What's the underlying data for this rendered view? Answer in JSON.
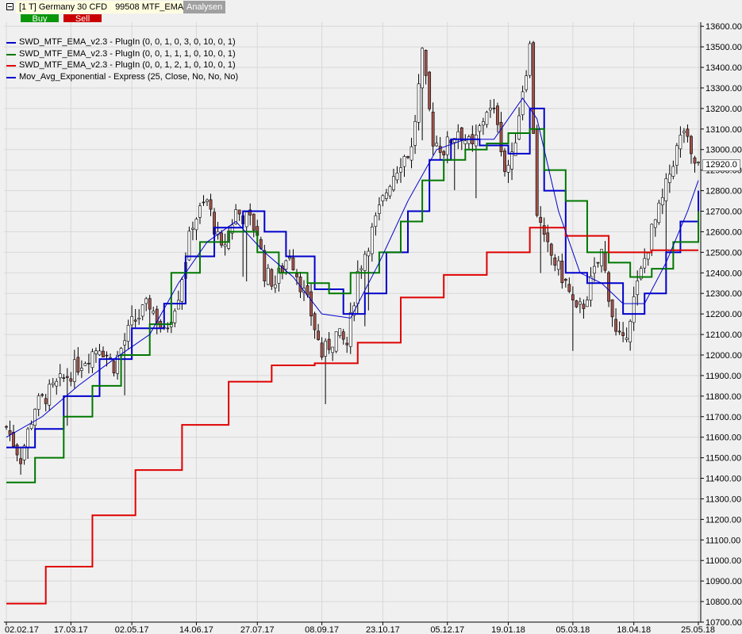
{
  "window": {
    "instrument": "[1 T] Germany 30 CFD",
    "template": "99508 MTF_EMA",
    "analysen_label": "Analysen",
    "buy_label": "Buy",
    "sell_label": "Sell",
    "buy_color": "#0a960a",
    "sell_color": "#c80000"
  },
  "legend": [
    {
      "text": "SWD_MTF_EMA_v2.3 - PlugIn  (0, 0, 1, 0, 3, 0, 10, 0, 1)",
      "color": "#0000cc"
    },
    {
      "text": "SWD_MTF_EMA_v2.3 - PlugIn  (0, 0, 1, 1, 1, 0, 10, 0, 1)",
      "color": "#007800"
    },
    {
      "text": "SWD_MTF_EMA_v2.3 - PlugIn  (0, 0, 1, 2, 1, 0, 10, 0, 1)",
      "color": "#e00000"
    },
    {
      "text": "Mov_Avg_Exponential - Express  (25, Close, No, No, No)",
      "color": "#0000cc"
    }
  ],
  "last_price_label": "12920.0",
  "chart_data": {
    "type": "candlestick",
    "x_tick_labels": [
      "02.02.17",
      "17.03.17",
      "02.05.17",
      "14.06.17",
      "27.07.17",
      "08.09.17",
      "23.10.17",
      "05.12.17",
      "19.01.18",
      "05.03.18",
      "18.04.18",
      "25.05.18"
    ],
    "y_ticks": [
      10700,
      10800,
      10900,
      11000,
      11100,
      11200,
      11300,
      11400,
      11500,
      11600,
      11700,
      11800,
      11900,
      12000,
      12100,
      12200,
      12300,
      12400,
      12500,
      12600,
      12700,
      12800,
      12900,
      13000,
      13100,
      13200,
      13300,
      13400,
      13500,
      13600
    ],
    "ylim": [
      10700,
      13620
    ],
    "grid": true,
    "colors": {
      "up": "#ffffff",
      "down": "#a0524a",
      "wick": "#000000"
    },
    "close_anchors": [
      [
        0,
        11650
      ],
      [
        4,
        11500
      ],
      [
        8,
        11750
      ],
      [
        14,
        11850
      ],
      [
        20,
        11950
      ],
      [
        26,
        12050
      ],
      [
        30,
        11950
      ],
      [
        35,
        12150
      ],
      [
        40,
        12250
      ],
      [
        44,
        12100
      ],
      [
        48,
        12300
      ],
      [
        52,
        12650
      ],
      [
        56,
        12750
      ],
      [
        60,
        12500
      ],
      [
        64,
        12700
      ],
      [
        68,
        12650
      ],
      [
        70,
        12600
      ],
      [
        72,
        12400
      ],
      [
        75,
        12350
      ],
      [
        79,
        12500
      ],
      [
        82,
        12350
      ],
      [
        85,
        12200
      ],
      [
        88,
        12000
      ],
      [
        92,
        12100
      ],
      [
        95,
        12050
      ],
      [
        98,
        12400
      ],
      [
        101,
        12550
      ],
      [
        104,
        12700
      ],
      [
        107,
        12850
      ],
      [
        110,
        12950
      ],
      [
        113,
        13000
      ],
      [
        116,
        13450
      ],
      [
        119,
        13050
      ],
      [
        122,
        13000
      ],
      [
        126,
        13100
      ],
      [
        130,
        13000
      ],
      [
        134,
        13200
      ],
      [
        137,
        13150
      ],
      [
        139,
        12900
      ],
      [
        141,
        12950
      ],
      [
        144,
        13300
      ],
      [
        146,
        13500
      ],
      [
        148,
        12700
      ],
      [
        150,
        12550
      ],
      [
        153,
        12450
      ],
      [
        156,
        12350
      ],
      [
        159,
        12200
      ],
      [
        161,
        12250
      ],
      [
        164,
        12400
      ],
      [
        166,
        12500
      ],
      [
        168,
        12300
      ],
      [
        170,
        12100
      ],
      [
        172,
        12050
      ],
      [
        174,
        12200
      ],
      [
        177,
        12400
      ],
      [
        180,
        12600
      ],
      [
        183,
        12750
      ],
      [
        186,
        12950
      ],
      [
        189,
        13100
      ],
      [
        191,
        12950
      ],
      [
        193,
        12920
      ]
    ],
    "series": [
      {
        "name": "SWD_MTF_EMA_v2.3 - PlugIn  (0, 0, 1, 0, 3, 0, 10, 0, 1)",
        "color": "#0000cc",
        "step": true,
        "points": [
          [
            0,
            11550
          ],
          [
            8,
            11640
          ],
          [
            16,
            11800
          ],
          [
            26,
            11980
          ],
          [
            35,
            12130
          ],
          [
            44,
            12250
          ],
          [
            50,
            12480
          ],
          [
            58,
            12620
          ],
          [
            66,
            12700
          ],
          [
            72,
            12600
          ],
          [
            78,
            12480
          ],
          [
            86,
            12320
          ],
          [
            94,
            12200
          ],
          [
            100,
            12300
          ],
          [
            106,
            12500
          ],
          [
            112,
            12700
          ],
          [
            118,
            12950
          ],
          [
            124,
            13050
          ],
          [
            132,
            13020
          ],
          [
            140,
            12980
          ],
          [
            146,
            13200
          ],
          [
            150,
            12800
          ],
          [
            156,
            12400
          ],
          [
            162,
            12350
          ],
          [
            168,
            12350
          ],
          [
            172,
            12200
          ],
          [
            178,
            12300
          ],
          [
            184,
            12500
          ],
          [
            188,
            12650
          ],
          [
            193,
            12800
          ]
        ]
      },
      {
        "name": "SWD_MTF_EMA_v2.3 - PlugIn  (0, 0, 1, 1, 1, 0, 10, 0, 1)",
        "color": "#007800",
        "step": true,
        "points": [
          [
            0,
            11380
          ],
          [
            8,
            11500
          ],
          [
            16,
            11700
          ],
          [
            24,
            11850
          ],
          [
            32,
            12000
          ],
          [
            40,
            12150
          ],
          [
            46,
            12400
          ],
          [
            54,
            12550
          ],
          [
            62,
            12600
          ],
          [
            70,
            12500
          ],
          [
            76,
            12400
          ],
          [
            84,
            12350
          ],
          [
            90,
            12300
          ],
          [
            96,
            12400
          ],
          [
            104,
            12500
          ],
          [
            110,
            12650
          ],
          [
            116,
            12850
          ],
          [
            122,
            12950
          ],
          [
            128,
            13000
          ],
          [
            134,
            13030
          ],
          [
            140,
            13080
          ],
          [
            146,
            13100
          ],
          [
            150,
            12900
          ],
          [
            156,
            12750
          ],
          [
            162,
            12500
          ],
          [
            168,
            12450
          ],
          [
            174,
            12380
          ],
          [
            180,
            12420
          ],
          [
            186,
            12550
          ],
          [
            193,
            12700
          ]
        ]
      },
      {
        "name": "SWD_MTF_EMA_v2.3 - PlugIn  (0, 0, 1, 2, 1, 0, 10, 0, 1)",
        "color": "#e00000",
        "step": true,
        "points": [
          [
            0,
            10790
          ],
          [
            11,
            10970
          ],
          [
            24,
            11220
          ],
          [
            36,
            11440
          ],
          [
            49,
            11660
          ],
          [
            62,
            11870
          ],
          [
            74,
            11950
          ],
          [
            86,
            11960
          ],
          [
            98,
            12060
          ],
          [
            110,
            12280
          ],
          [
            122,
            12390
          ],
          [
            134,
            12500
          ],
          [
            146,
            12620
          ],
          [
            156,
            12580
          ],
          [
            168,
            12500
          ],
          [
            180,
            12510
          ],
          [
            193,
            12510
          ]
        ]
      },
      {
        "name": "Mov_Avg_Exponential - Express  (25, Close, No, No, No)",
        "color": "#0000cc",
        "step": false,
        "points": [
          [
            0,
            11600
          ],
          [
            10,
            11700
          ],
          [
            20,
            11850
          ],
          [
            30,
            11980
          ],
          [
            40,
            12100
          ],
          [
            48,
            12350
          ],
          [
            56,
            12550
          ],
          [
            64,
            12650
          ],
          [
            72,
            12500
          ],
          [
            80,
            12380
          ],
          [
            88,
            12200
          ],
          [
            96,
            12180
          ],
          [
            104,
            12450
          ],
          [
            112,
            12750
          ],
          [
            120,
            13000
          ],
          [
            128,
            13050
          ],
          [
            136,
            13050
          ],
          [
            144,
            13250
          ],
          [
            148,
            13150
          ],
          [
            154,
            12700
          ],
          [
            160,
            12400
          ],
          [
            166,
            12350
          ],
          [
            172,
            12250
          ],
          [
            178,
            12250
          ],
          [
            184,
            12450
          ],
          [
            190,
            12700
          ],
          [
            193,
            12850
          ]
        ]
      }
    ]
  }
}
